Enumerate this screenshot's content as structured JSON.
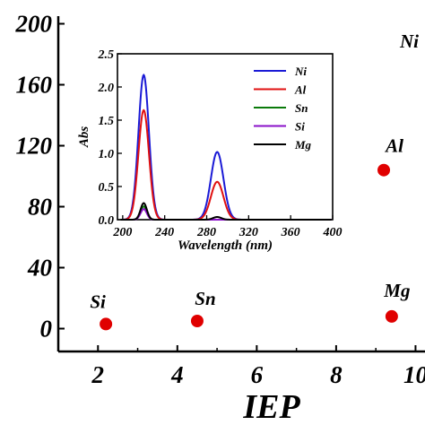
{
  "chart_data": [
    {
      "type": "scatter",
      "xlabel": "IEP",
      "ylabel": "",
      "xlim": [
        1,
        10.6
      ],
      "ylim": [
        -15,
        205
      ],
      "x_ticks": [
        "2",
        "4",
        "6",
        "8",
        "10"
      ],
      "y_ticks": [
        "0",
        "40",
        "80",
        "120",
        "160",
        "200"
      ],
      "marker_color": "#e00000",
      "points": [
        {
          "label": "Si",
          "x": 2.2,
          "y": 3
        },
        {
          "label": "Sn",
          "x": 4.5,
          "y": 5
        },
        {
          "label": "Al",
          "x": 9.2,
          "y": 104
        },
        {
          "label": "Mg",
          "x": 9.4,
          "y": 8
        },
        {
          "label": "Ni",
          "x": 10.8,
          "y": 178
        }
      ]
    },
    {
      "type": "line",
      "xlabel": "Wavelength (nm)",
      "ylabel": "Abs",
      "xlim": [
        195,
        400
      ],
      "ylim": [
        0,
        2.5
      ],
      "x_ticks": [
        "200",
        "240",
        "280",
        "320",
        "360",
        "400"
      ],
      "y_ticks": [
        "0.0",
        "0.5",
        "1.0",
        "1.5",
        "2.0",
        "2.5"
      ],
      "legend_position": "top-right",
      "series": [
        {
          "name": "Ni",
          "color": "#1a1ad6",
          "peaks": [
            {
              "center": 220,
              "height": 2.18,
              "width": 5
            },
            {
              "center": 290,
              "height": 1.02,
              "width": 6
            }
          ]
        },
        {
          "name": "Al",
          "color": "#e01010",
          "peaks": [
            {
              "center": 220,
              "height": 1.65,
              "width": 5
            },
            {
              "center": 290,
              "height": 0.57,
              "width": 6
            }
          ]
        },
        {
          "name": "Sn",
          "color": "#0a7a0a",
          "peaks": [
            {
              "center": 220,
              "height": 0.2,
              "width": 3
            }
          ]
        },
        {
          "name": "Si",
          "color": "#8a10c8",
          "peaks": [
            {
              "center": 220,
              "height": 0.16,
              "width": 3
            }
          ]
        },
        {
          "name": "Mg",
          "color": "#000000",
          "peaks": [
            {
              "center": 220,
              "height": 0.25,
              "width": 3
            },
            {
              "center": 290,
              "height": 0.04,
              "width": 4
            }
          ]
        }
      ]
    }
  ]
}
